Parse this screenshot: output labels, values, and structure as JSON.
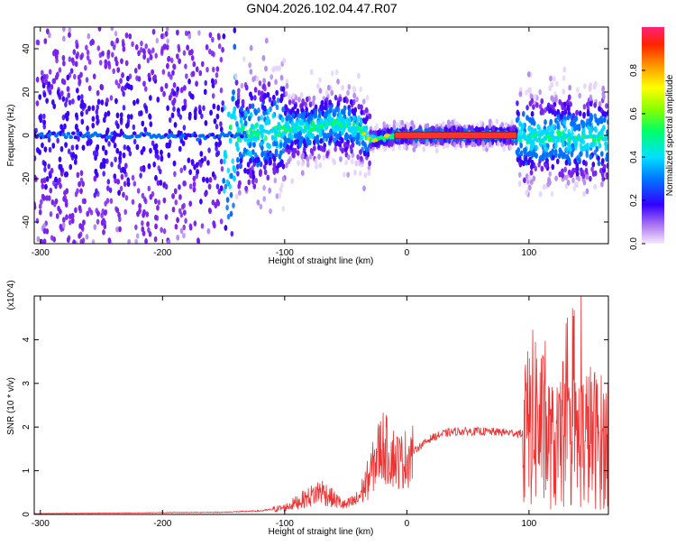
{
  "title": "GN04.2026.102.04.47.R07",
  "chart_data": [
    {
      "type": "heatmap",
      "xlabel": "Height of straight line (km)",
      "ylabel": "Frequency (Hz)",
      "xlim": [
        -305,
        165
      ],
      "ylim": [
        -50,
        50
      ],
      "xticks": [
        -300,
        -200,
        -100,
        0,
        100
      ],
      "yticks": [
        -40,
        -20,
        0,
        20,
        40
      ],
      "colorbar": {
        "label": "Normalized spectral amplitude",
        "range": [
          0.0,
          1.0
        ],
        "ticks": [
          0.0,
          0.2,
          0.4,
          0.6,
          0.8
        ]
      },
      "ridge": {
        "x": [
          -305,
          -250,
          -200,
          -170,
          -150,
          -120,
          -100,
          -80,
          -70,
          -60,
          -50,
          -40,
          -30,
          -20,
          -10,
          0,
          20,
          40,
          60,
          85,
          100,
          110,
          120,
          130,
          140,
          150,
          165
        ],
        "y": [
          0,
          0,
          0,
          -1,
          0,
          1,
          3,
          3,
          4,
          6,
          5,
          3,
          -2,
          -1,
          0,
          0,
          0,
          0,
          0,
          0,
          -1,
          -2,
          -1,
          0,
          -2,
          -1,
          -2
        ]
      }
    },
    {
      "type": "line",
      "xlabel": "Height of straight line (km)",
      "ylabel": "SNR (10 * v/v)",
      "yscale_label": "(x10^4)",
      "xlim": [
        -305,
        165
      ],
      "ylim": [
        0,
        5
      ],
      "xticks": [
        -300,
        -200,
        -100,
        0,
        100
      ],
      "yticks": [
        0,
        1,
        2,
        3,
        4
      ],
      "series": [
        {
          "color": "#ee3333",
          "x": [
            -305,
            -250,
            -200,
            -150,
            -120,
            -100,
            -90,
            -80,
            -70,
            -60,
            -50,
            -40,
            -30,
            -25,
            -20,
            -15,
            -10,
            -5,
            0,
            10,
            20,
            30,
            40,
            60,
            80,
            95,
            100,
            105,
            110,
            120,
            130,
            140,
            150,
            165
          ],
          "y": [
            0.02,
            0.03,
            0.04,
            0.05,
            0.08,
            0.15,
            0.28,
            0.4,
            0.55,
            0.35,
            0.2,
            0.35,
            0.9,
            1.3,
            1.6,
            1.4,
            1.3,
            1.2,
            1.3,
            1.55,
            1.75,
            1.85,
            1.9,
            1.9,
            1.88,
            1.85,
            2.0,
            2.3,
            2.0,
            1.5,
            1.6,
            1.7,
            1.8,
            1.6
          ]
        }
      ]
    }
  ]
}
